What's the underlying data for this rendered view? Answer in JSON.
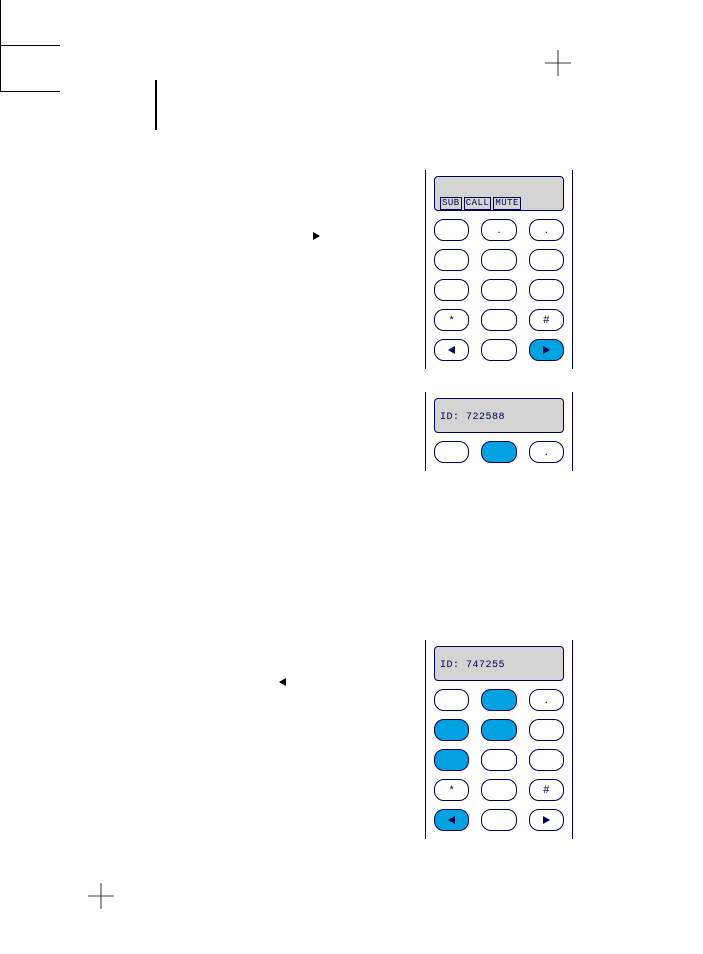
{
  "colors": {
    "outline": "#000051",
    "accent": "#00a3e0",
    "lcd_bg": "#d4d4d4",
    "page_bg": "#ffffff"
  },
  "marker1": {
    "direction": "right"
  },
  "marker2": {
    "direction": "left"
  },
  "phone1": {
    "display_segments": [
      "SUB",
      "CALL",
      "MUTE"
    ],
    "keypad": {
      "rows": 5,
      "cols": 3,
      "keys": [
        {
          "label": "",
          "filled": false
        },
        {
          "label": ".",
          "filled": false
        },
        {
          "label": ".",
          "filled": false
        },
        {
          "label": "",
          "filled": false
        },
        {
          "label": "",
          "filled": false
        },
        {
          "label": "",
          "filled": false
        },
        {
          "label": "",
          "filled": false
        },
        {
          "label": "",
          "filled": false
        },
        {
          "label": "",
          "filled": false
        },
        {
          "label": "*",
          "filled": false
        },
        {
          "label": "",
          "filled": false
        },
        {
          "label": "#",
          "filled": false
        },
        {
          "icon": "triangle-left",
          "filled": false
        },
        {
          "label": "",
          "filled": false
        },
        {
          "icon": "triangle-right",
          "filled": true
        }
      ]
    }
  },
  "phone2": {
    "display_text": "ID: 722588",
    "keypad": {
      "rows": 1,
      "cols": 3,
      "keys": [
        {
          "label": "",
          "filled": false
        },
        {
          "label": "",
          "filled": true
        },
        {
          "label": ".",
          "filled": false
        }
      ]
    }
  },
  "phone3": {
    "display_text": "ID: 747255",
    "keypad": {
      "rows": 5,
      "cols": 3,
      "keys": [
        {
          "label": "",
          "filled": false
        },
        {
          "label": "",
          "filled": true
        },
        {
          "label": ".",
          "filled": false
        },
        {
          "label": "",
          "filled": true
        },
        {
          "label": "",
          "filled": true
        },
        {
          "label": "",
          "filled": false
        },
        {
          "label": "",
          "filled": true
        },
        {
          "label": "",
          "filled": false
        },
        {
          "label": "",
          "filled": false
        },
        {
          "label": "*",
          "filled": false
        },
        {
          "label": "",
          "filled": false
        },
        {
          "label": "#",
          "filled": false
        },
        {
          "icon": "triangle-left",
          "filled": true
        },
        {
          "label": "",
          "filled": false
        },
        {
          "icon": "triangle-right",
          "filled": false
        }
      ]
    }
  }
}
